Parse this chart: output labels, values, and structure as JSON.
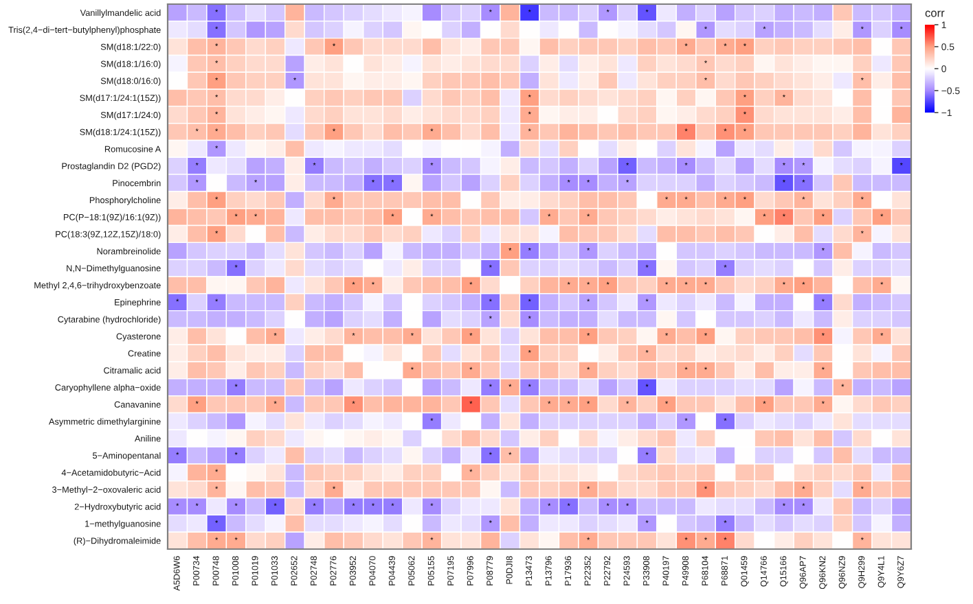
{
  "chart_data": {
    "type": "heatmap",
    "clabel": "corr",
    "clim": [
      -1,
      1
    ],
    "cticks": [
      {
        "value": -1,
        "label": "−1"
      },
      {
        "value": -0.5,
        "label": "−0.5"
      },
      0,
      0.5,
      1
    ],
    "categories": [
      "A5D6W6",
      "P00734",
      "P00748",
      "P01008",
      "P01019",
      "P01033",
      "P02652",
      "P02748",
      "P02776",
      "P03952",
      "P04070",
      "P04439",
      "P05062",
      "P05155",
      "P07195",
      "P07996",
      "P08779",
      "P0DJI8",
      "P13473",
      "P13796",
      "P17936",
      "P22352",
      "P22792",
      "P24593",
      "P33908",
      "P40197",
      "P49908",
      "P68104",
      "P68871",
      "Q01459",
      "Q14766",
      "Q15166",
      "Q96AP7",
      "Q96KN2",
      "Q96NZ9",
      "Q9H299",
      "Q9Y4L1",
      "Q9Y6Z7"
    ],
    "y_categories": [
      "Vanillylmandelic acid",
      "Tris(2,4−di−tert−butylphenyl)phosphate",
      "SM(d18:1/22:0)",
      "SM(d18:1/16:0)",
      "SM(d18:0/16:0)",
      "SM(d17:1/24:1(15Z))",
      "SM(d17:1/24:0)",
      "SM(d18:1/24:1(15Z))",
      "Romucosine A",
      "Prostaglandin D2 (PGD2)",
      "Pinocembrin",
      "Phosphorylcholine",
      "PC(P−18:1(9Z)/16:1(9Z))",
      "PC(18:3(9Z,12Z,15Z)/18:0)",
      "Norambreinolide",
      "N,N−Dimethylguanosine",
      "Methyl 2,4,6−trihydroxybenzoate",
      "Epinephrine",
      "Cytarabine (hydrochloride)",
      "Cyasterone",
      "Creatine",
      "Citramalic acid",
      "Caryophyllene alpha−oxide",
      "Canavanine",
      "Asymmetric dimethylarginine",
      "Aniline",
      "5−Aminopentanal",
      "4−Acetamidobutyric−Acid",
      "3−Methyl−2−oxovaleric acid",
      "2−Hydroxybutyric acid",
      "1−methylguanosine",
      "(R)−Dihydromaleimide"
    ],
    "cells": [
      [
        -0.4,
        -0.3,
        -0.6,
        -0.3,
        -0.15,
        -0.25,
        0.4,
        -0.3,
        -0.25,
        -0.2,
        -0.15,
        -0.1,
        -0.05,
        -0.5,
        -0.25,
        -0.2,
        -0.5,
        0.4,
        -0.8,
        -0.3,
        -0.3,
        -0.2,
        -0.45,
        -0.2,
        -0.7,
        -0.1,
        -0.35,
        -0.2,
        -0.4,
        -0.25,
        -0.2,
        -0.35,
        -0.3,
        -0.35,
        0.3,
        -0.3,
        -0.25,
        -0.35
      ],
      [
        -0.1,
        -0.15,
        -0.6,
        -0.25,
        -0.45,
        -0.4,
        0.2,
        -0.25,
        -0.2,
        -0.05,
        -0.2,
        -0.25,
        0.05,
        0,
        -0.2,
        -0.35,
        0,
        0.2,
        0,
        -0.1,
        0,
        -0.3,
        0,
        -0.05,
        -0.15,
        -0.25,
        0.05,
        -0.45,
        -0.15,
        -0.2,
        -0.4,
        -0.35,
        -0.3,
        -0.15,
        0.1,
        -0.45,
        -0.2,
        -0.5
      ],
      [
        0.15,
        0.35,
        0.4,
        0.3,
        0.2,
        0.25,
        -0.1,
        0.3,
        0.5,
        0.3,
        0.2,
        0.2,
        0.2,
        0.35,
        0.15,
        0.1,
        0.3,
        0.3,
        0.05,
        0.35,
        0.25,
        0.3,
        0.3,
        0.25,
        0.35,
        0.3,
        0.45,
        0.3,
        0.45,
        0.5,
        0.25,
        0.3,
        0.25,
        0.25,
        0.3,
        0.35,
        0,
        0.3
      ],
      [
        -0.05,
        0.3,
        0.35,
        0.25,
        0.2,
        0.2,
        -0.4,
        0.1,
        0.15,
        0,
        0.15,
        0.1,
        -0.05,
        0.15,
        0.1,
        0.15,
        0.2,
        0.2,
        -0.2,
        0.1,
        -0.15,
        0.1,
        0.15,
        -0.1,
        0.25,
        0.15,
        0.2,
        0.3,
        0.2,
        0.25,
        0.05,
        0.15,
        0.1,
        0.05,
        0.05,
        0.25,
        -0.1,
        0.3
      ],
      [
        0,
        0.3,
        0.5,
        0.3,
        0.25,
        0.25,
        -0.45,
        0.15,
        0.15,
        0.05,
        0.1,
        0.1,
        0.05,
        0.25,
        0.3,
        0.3,
        0.35,
        0.3,
        -0.35,
        0.15,
        -0.1,
        0.1,
        0.3,
        -0.1,
        0.15,
        0.25,
        0.25,
        0.35,
        0.2,
        0.3,
        0.25,
        0.2,
        0.15,
        0.1,
        -0.1,
        0.35,
        0.1,
        0.35
      ],
      [
        0.35,
        0.3,
        0.35,
        0.2,
        0.2,
        0.1,
        0,
        0.25,
        0.3,
        0.25,
        0.3,
        0.3,
        -0.2,
        0.2,
        0.3,
        0.25,
        0.35,
        -0.1,
        0.5,
        0.2,
        0.25,
        0.2,
        0.15,
        0.2,
        0.25,
        0.05,
        0.25,
        0.05,
        0.3,
        0.5,
        0.25,
        0.4,
        0.2,
        0.15,
        0,
        0.35,
        0,
        0.3
      ],
      [
        0.2,
        0.3,
        0.4,
        0.15,
        0.1,
        0.05,
        -0.1,
        0.2,
        0.25,
        0.15,
        0.15,
        0.2,
        0.1,
        0.15,
        0.2,
        0.2,
        0.25,
        -0.1,
        0.45,
        0.05,
        0.1,
        0.1,
        0,
        0.2,
        0.25,
        0.05,
        0.1,
        0.2,
        0.25,
        0.55,
        0.2,
        0.15,
        0.15,
        0.15,
        0.1,
        0.35,
        0,
        0.4
      ],
      [
        0.3,
        0.35,
        0.45,
        0.35,
        0.25,
        0.3,
        -0.15,
        0.3,
        0.5,
        0.3,
        0.2,
        0.35,
        0.3,
        0.45,
        0.35,
        0.2,
        0.35,
        -0.1,
        0.4,
        0.3,
        0.4,
        0.35,
        0.3,
        0.35,
        0.3,
        0.3,
        0.6,
        0.3,
        0.55,
        0.5,
        0.3,
        0.3,
        0.3,
        0.3,
        0.25,
        0.4,
        0.15,
        0.25
      ],
      [
        0.05,
        -0.1,
        -0.45,
        -0.1,
        0.05,
        0.1,
        0.35,
        -0.1,
        -0.05,
        -0.1,
        -0.1,
        -0.15,
        0,
        -0.05,
        0,
        0,
        -0.05,
        -0.35,
        0.2,
        -0.15,
        0.25,
        0,
        -0.15,
        0.1,
        0,
        -0.2,
        0.15,
        -0.05,
        -0.4,
        -0.1,
        -0.15,
        0.1,
        -0.1,
        0.2,
        -0.25,
        -0.05,
        -0.05,
        -0.2
      ],
      [
        -0.2,
        -0.55,
        -0.1,
        -0.15,
        -0.4,
        -0.35,
        0.1,
        -0.55,
        -0.3,
        -0.25,
        -0.35,
        -0.25,
        -0.2,
        -0.5,
        -0.3,
        -0.25,
        -0.05,
        0.1,
        -0.3,
        -0.25,
        -0.35,
        -0.2,
        -0.4,
        -0.65,
        -0.3,
        -0.35,
        -0.5,
        -0.3,
        -0.15,
        -0.4,
        -0.15,
        -0.5,
        -0.45,
        -0.05,
        -0.15,
        -0.2,
        -0.05,
        -0.75
      ],
      [
        -0.25,
        -0.45,
        0,
        -0.3,
        -0.4,
        -0.4,
        0.1,
        -0.3,
        -0.3,
        -0.35,
        -0.6,
        -0.6,
        0.05,
        -0.4,
        -0.25,
        -0.4,
        -0.2,
        0.25,
        -0.2,
        -0.35,
        -0.5,
        -0.5,
        -0.35,
        -0.4,
        -0.2,
        -0.2,
        -0.2,
        -0.35,
        -0.2,
        -0.25,
        -0.3,
        -0.7,
        -0.6,
        -0.25,
        0.3,
        -0.3,
        -0.3,
        -0.3
      ],
      [
        0.1,
        0.35,
        0.5,
        0.25,
        0.2,
        0.3,
        -0.35,
        0.2,
        0.45,
        0.3,
        0.3,
        0.3,
        0.3,
        0.35,
        0.35,
        0,
        0.3,
        0.1,
        0.1,
        0.2,
        0.25,
        0.35,
        0.35,
        0.3,
        0,
        0.45,
        0.45,
        0.35,
        0.45,
        0.5,
        0.2,
        0.3,
        0.4,
        0.15,
        0.25,
        0.45,
        0,
        0.15
      ],
      [
        0.4,
        0.35,
        0.3,
        0.5,
        0.45,
        0.4,
        -0.1,
        0.35,
        0.35,
        0.3,
        0.35,
        0.5,
        0,
        0.45,
        0.35,
        0.3,
        0.35,
        0.35,
        -0.25,
        0.45,
        0.3,
        0.45,
        0.3,
        0.25,
        0.2,
        0.1,
        0.15,
        0.2,
        0.15,
        0.05,
        0.5,
        0.6,
        0.3,
        0.5,
        -0.2,
        0.3,
        0.5,
        0.3
      ],
      [
        0.1,
        0.35,
        0.5,
        0.2,
        0,
        0.35,
        -0.3,
        0.1,
        0.2,
        0.2,
        0.3,
        0.2,
        0.25,
        -0.1,
        -0.2,
        0.25,
        -0.1,
        0.15,
        0.15,
        -0.05,
        0.35,
        0.3,
        0.3,
        0.2,
        -0.15,
        0.35,
        0.35,
        0.3,
        0.35,
        0.3,
        0,
        0.1,
        0.35,
        -0.15,
        0.2,
        0.4,
        -0.05,
        0.15
      ],
      [
        -0.4,
        -0.25,
        -0.2,
        -0.2,
        -0.3,
        -0.15,
        0.15,
        -0.25,
        -0.3,
        -0.2,
        -0.4,
        -0.05,
        -0.3,
        -0.35,
        -0.35,
        -0.25,
        -0.35,
        0.5,
        -0.55,
        -0.35,
        -0.25,
        -0.45,
        -0.2,
        -0.3,
        -0.35,
        0,
        -0.25,
        -0.25,
        -0.2,
        -0.25,
        -0.3,
        -0.3,
        -0.3,
        -0.45,
        0.35,
        -0.05,
        -0.3,
        -0.25
      ],
      [
        -0.2,
        -0.2,
        -0.3,
        -0.6,
        -0.2,
        -0.1,
        0.2,
        -0.15,
        -0.2,
        -0.15,
        0,
        -0.1,
        0.1,
        -0.2,
        -0.2,
        0,
        -0.6,
        0.3,
        -0.2,
        -0.2,
        -0.15,
        -0.2,
        -0.3,
        -0.2,
        -0.6,
        0.05,
        -0.25,
        -0.2,
        -0.55,
        -0.2,
        -0.15,
        -0.2,
        0,
        -0.25,
        0.1,
        -0.2,
        -0.2,
        -0.15
      ],
      [
        0.35,
        0.35,
        0.05,
        0.05,
        0.3,
        0.4,
        -0.1,
        0.15,
        0.3,
        0.5,
        0.45,
        0.1,
        0.3,
        0.35,
        0.35,
        0.5,
        0.2,
        0,
        0.25,
        0.4,
        0.45,
        0.45,
        0.5,
        0.3,
        0.25,
        0.45,
        0.45,
        0.45,
        0.3,
        0.2,
        0.25,
        0.45,
        0.5,
        0.4,
        0,
        0.35,
        0.45,
        0.05
      ],
      [
        -0.6,
        -0.2,
        -0.55,
        -0.3,
        -0.3,
        -0.3,
        0.25,
        -0.3,
        -0.35,
        -0.25,
        -0.05,
        -0.25,
        0,
        -0.2,
        -0.25,
        -0.35,
        -0.6,
        0.3,
        -0.65,
        -0.35,
        -0.25,
        -0.4,
        -0.25,
        -0.1,
        -0.45,
        -0.1,
        -0.2,
        -0.1,
        -0.3,
        -0.05,
        -0.35,
        -0.35,
        0,
        -0.55,
        0.2,
        -0.35,
        -0.3,
        -0.25
      ],
      [
        -0.3,
        -0.3,
        -0.35,
        -0.35,
        -0.3,
        -0.2,
        0,
        -0.35,
        -0.4,
        -0.2,
        -0.15,
        -0.35,
        0,
        -0.4,
        -0.15,
        -0.2,
        -0.4,
        0.2,
        -0.5,
        -0.3,
        -0.35,
        -0.35,
        -0.15,
        -0.3,
        -0.3,
        0.05,
        -0.25,
        0,
        -0.25,
        -0.25,
        -0.2,
        -0.3,
        -0.1,
        -0.3,
        0.1,
        -0.2,
        -0.2,
        -0.25
      ],
      [
        0.1,
        0.35,
        0.15,
        0,
        0.35,
        0.45,
        -0.1,
        0.1,
        0.2,
        0.4,
        0.35,
        0.35,
        0.45,
        0.15,
        0.3,
        0.5,
        0.15,
        -0.2,
        0.15,
        0.35,
        0.35,
        0.5,
        0.3,
        0.25,
        0.05,
        0.45,
        0.35,
        0.5,
        0.05,
        0.25,
        0.3,
        0.3,
        0.35,
        0.55,
        -0.05,
        0.3,
        0.45,
        0.15
      ],
      [
        0.1,
        0.25,
        0.35,
        0.15,
        0.1,
        0.1,
        -0.2,
        0.35,
        0.35,
        0,
        -0.05,
        0.15,
        0,
        0.3,
        -0.15,
        0.15,
        0.3,
        -0.15,
        0.5,
        0.25,
        0.25,
        0,
        0.1,
        0.3,
        0.4,
        0.2,
        0.25,
        0.1,
        0.15,
        0.2,
        0.1,
        0.25,
        -0.15,
        0.3,
        0,
        0.15,
        -0.05,
        0.3
      ],
      [
        0.1,
        0.35,
        0.3,
        0.1,
        0.3,
        0.25,
        -0.3,
        0.25,
        0.2,
        0.35,
        0,
        0,
        0.45,
        0.35,
        0.3,
        0.45,
        0.3,
        -0.2,
        0.3,
        0.35,
        0.2,
        0.45,
        0.25,
        0.2,
        0.35,
        0.3,
        0.45,
        0.45,
        0.3,
        0.1,
        0.35,
        0.1,
        0.1,
        0.45,
        0,
        0.3,
        0.35,
        0.35
      ],
      [
        -0.35,
        -0.35,
        -0.35,
        -0.55,
        -0.3,
        -0.3,
        0.3,
        -0.3,
        -0.4,
        -0.1,
        -0.2,
        -0.25,
        0,
        -0.4,
        -0.3,
        -0.1,
        -0.55,
        0.45,
        -0.55,
        -0.3,
        -0.3,
        -0.15,
        -0.4,
        -0.25,
        -0.7,
        -0.1,
        -0.2,
        -0.2,
        -0.2,
        -0.15,
        -0.15,
        -0.4,
        -0.05,
        -0.3,
        0.4,
        -0.35,
        -0.3,
        -0.4
      ],
      [
        0.2,
        0.5,
        0.3,
        0.3,
        0.3,
        0.45,
        -0.3,
        0.3,
        0.3,
        0.55,
        0.35,
        0.4,
        0.4,
        0.4,
        0.3,
        0.7,
        0.3,
        -0.15,
        0.3,
        0.45,
        0.45,
        0.5,
        0.2,
        0.4,
        0.25,
        0.5,
        0.3,
        0.3,
        0.15,
        0.35,
        0.5,
        0.3,
        0.3,
        0.45,
        0.05,
        0.2,
        0.3,
        0.25
      ],
      [
        -0.1,
        -0.2,
        -0.3,
        -0.45,
        -0.05,
        -0.15,
        0.15,
        -0.1,
        -0.2,
        -0.15,
        -0.05,
        -0.1,
        0,
        -0.55,
        -0.1,
        0,
        -0.35,
        0.15,
        -0.35,
        -0.2,
        -0.2,
        -0.2,
        -0.2,
        -0.2,
        -0.35,
        -0.2,
        -0.45,
        0,
        -0.6,
        -0.2,
        -0.1,
        -0.15,
        -0.2,
        -0.1,
        0.15,
        -0.15,
        -0.15,
        -0.15
      ],
      [
        -0.1,
        0,
        -0.05,
        0.05,
        0.25,
        0.2,
        -0.1,
        0.05,
        0,
        0.05,
        0.1,
        0.05,
        -0.2,
        0,
        0.2,
        0.35,
        0.2,
        -0.25,
        0.1,
        0.25,
        0,
        0.2,
        -0.05,
        0.1,
        0.2,
        0.3,
        -0.1,
        0.25,
        0,
        0,
        0.3,
        0.35,
        0.15,
        0.35,
        -0.25,
        0.2,
        0,
        0.15
      ],
      [
        -0.55,
        -0.3,
        -0.4,
        -0.55,
        -0.2,
        -0.1,
        0.35,
        -0.2,
        -0.15,
        -0.3,
        -0.2,
        -0.15,
        0.05,
        -0.2,
        -0.35,
        -0.1,
        -0.6,
        0.35,
        -0.4,
        -0.1,
        -0.15,
        -0.2,
        -0.2,
        0,
        -0.55,
        0.2,
        -0.15,
        -0.1,
        -0.35,
        0,
        -0.2,
        -0.2,
        0,
        -0.25,
        0.35,
        -0.15,
        -0.3,
        -0.3
      ],
      [
        -0.05,
        0.4,
        0.45,
        0,
        0.05,
        0.15,
        -0.3,
        0.3,
        0.25,
        0.25,
        0.15,
        0.1,
        0.25,
        0.25,
        0,
        0.4,
        0.25,
        0.15,
        0.3,
        0.15,
        0.15,
        0.1,
        0,
        0.2,
        0.25,
        0.3,
        0.25,
        0.3,
        0,
        0.3,
        0.3,
        0,
        0.2,
        0.25,
        0.2,
        0.3,
        -0.1,
        0.35
      ],
      [
        0.15,
        0.2,
        0.4,
        0.05,
        0.35,
        0.3,
        -0.3,
        0.2,
        0.45,
        0.1,
        0.3,
        0.3,
        0.3,
        0.3,
        0.3,
        0.3,
        0.05,
        -0.3,
        0.3,
        0.25,
        0.3,
        0.45,
        0.3,
        0.2,
        0.2,
        0.3,
        0.3,
        0.55,
        0.3,
        0.25,
        0.2,
        0.35,
        0.45,
        0.25,
        -0.15,
        0.45,
        0.3,
        0.35
      ],
      [
        -0.5,
        -0.5,
        -0.1,
        -0.5,
        -0.3,
        -0.65,
        0.2,
        -0.55,
        -0.4,
        -0.55,
        -0.55,
        -0.55,
        -0.1,
        -0.5,
        -0.2,
        -0.1,
        -0.1,
        0.15,
        -0.35,
        -0.5,
        -0.6,
        -0.3,
        -0.5,
        -0.5,
        -0.3,
        -0.3,
        -0.3,
        -0.1,
        -0.15,
        -0.15,
        -0.3,
        -0.5,
        -0.5,
        -0.1,
        0.3,
        -0.3,
        -0.2,
        -0.4
      ],
      [
        -0.15,
        -0.1,
        -0.65,
        -0.3,
        -0.15,
        -0.05,
        0.35,
        -0.15,
        -0.15,
        -0.1,
        -0.05,
        -0.15,
        0,
        -0.3,
        -0.1,
        -0.15,
        -0.45,
        0.35,
        -0.35,
        -0.1,
        -0.1,
        -0.2,
        -0.15,
        -0.1,
        -0.45,
        0,
        -0.25,
        -0.3,
        -0.55,
        -0.3,
        -0.15,
        -0.25,
        -0.15,
        -0.2,
        0.25,
        -0.25,
        -0.05,
        -0.35
      ],
      [
        0.15,
        0.35,
        0.45,
        0.45,
        0.2,
        0.25,
        -0.4,
        0.1,
        0.35,
        0.3,
        0.2,
        0.15,
        0.3,
        0.4,
        0.15,
        0.15,
        0.4,
        -0.2,
        0.15,
        0.05,
        0.35,
        0.45,
        0.3,
        0.3,
        0.3,
        0.15,
        0.55,
        0.45,
        0.6,
        0.2,
        0,
        0.1,
        0.25,
        0.15,
        0,
        0.4,
        0.15,
        0.15
      ]
    ],
    "cell_labels": [
      [
        null,
        null,
        "*",
        null,
        null,
        null,
        null,
        null,
        null,
        null,
        null,
        null,
        null,
        null,
        null,
        null,
        "*",
        null,
        "*",
        null,
        null,
        null,
        "*",
        null,
        "*",
        null,
        null,
        null,
        null,
        null,
        null,
        null,
        null,
        null,
        null,
        null,
        null,
        null
      ],
      [
        null,
        null,
        "*",
        null,
        null,
        null,
        null,
        null,
        null,
        null,
        null,
        null,
        null,
        null,
        null,
        null,
        null,
        null,
        null,
        null,
        null,
        null,
        null,
        null,
        null,
        null,
        null,
        "*",
        null,
        null,
        "*",
        null,
        null,
        null,
        null,
        "*",
        null,
        "*"
      ],
      [
        null,
        null,
        "*",
        null,
        null,
        null,
        null,
        null,
        "*",
        null,
        null,
        null,
        null,
        null,
        null,
        null,
        null,
        null,
        null,
        null,
        null,
        null,
        null,
        null,
        null,
        null,
        "*",
        null,
        "*",
        "*",
        null,
        null,
        null,
        null,
        null,
        null,
        null,
        null
      ],
      [
        null,
        null,
        "*",
        null,
        null,
        null,
        null,
        null,
        null,
        null,
        null,
        null,
        null,
        null,
        null,
        null,
        null,
        null,
        null,
        null,
        null,
        null,
        null,
        null,
        null,
        null,
        null,
        "*",
        null,
        null,
        null,
        null,
        null,
        null,
        null,
        null,
        null,
        null
      ],
      [
        null,
        null,
        "*",
        null,
        null,
        null,
        "*",
        null,
        null,
        null,
        null,
        null,
        null,
        null,
        null,
        null,
        null,
        null,
        null,
        null,
        null,
        null,
        null,
        null,
        null,
        null,
        null,
        "*",
        null,
        null,
        null,
        null,
        null,
        null,
        null,
        "*",
        null,
        null
      ],
      [
        null,
        null,
        "*",
        null,
        null,
        null,
        null,
        null,
        null,
        null,
        null,
        null,
        null,
        null,
        null,
        null,
        null,
        null,
        "*",
        null,
        null,
        null,
        null,
        null,
        null,
        null,
        null,
        null,
        null,
        "*",
        null,
        "*",
        null,
        null,
        null,
        null,
        null,
        null
      ],
      [
        null,
        null,
        "*",
        null,
        null,
        null,
        null,
        null,
        null,
        null,
        null,
        null,
        null,
        null,
        null,
        null,
        null,
        null,
        "*",
        null,
        null,
        null,
        null,
        null,
        null,
        null,
        null,
        null,
        null,
        "*",
        null,
        null,
        null,
        null,
        null,
        null,
        null,
        null
      ],
      [
        null,
        "*",
        "*",
        null,
        null,
        null,
        null,
        null,
        "*",
        null,
        null,
        null,
        null,
        "*",
        null,
        null,
        null,
        null,
        "*",
        null,
        null,
        null,
        null,
        null,
        null,
        null,
        "*",
        null,
        "*",
        "*",
        null,
        null,
        null,
        null,
        null,
        null,
        null,
        null
      ],
      [
        null,
        null,
        "*",
        null,
        null,
        null,
        null,
        null,
        null,
        null,
        null,
        null,
        null,
        null,
        null,
        null,
        null,
        null,
        null,
        null,
        null,
        null,
        null,
        null,
        null,
        null,
        null,
        null,
        null,
        null,
        null,
        null,
        null,
        null,
        null,
        null,
        null,
        null
      ],
      [
        null,
        "*",
        null,
        null,
        null,
        null,
        null,
        "*",
        null,
        null,
        null,
        null,
        null,
        "*",
        null,
        null,
        null,
        null,
        null,
        null,
        null,
        null,
        null,
        "*",
        null,
        null,
        "*",
        null,
        null,
        null,
        null,
        "*",
        "*",
        null,
        null,
        null,
        null,
        "*"
      ],
      [
        null,
        "*",
        null,
        null,
        "*",
        null,
        null,
        null,
        null,
        null,
        "*",
        "*",
        null,
        null,
        null,
        null,
        null,
        null,
        null,
        null,
        "*",
        "*",
        null,
        "*",
        null,
        null,
        null,
        null,
        null,
        null,
        null,
        "*",
        "*",
        null,
        null,
        null,
        null,
        null
      ],
      [
        null,
        null,
        "*",
        null,
        null,
        null,
        null,
        null,
        "*",
        null,
        null,
        null,
        null,
        null,
        null,
        null,
        null,
        null,
        null,
        null,
        null,
        null,
        null,
        null,
        null,
        "*",
        "*",
        null,
        "*",
        "*",
        null,
        null,
        "*",
        null,
        null,
        "*",
        null,
        null
      ],
      [
        null,
        null,
        null,
        "*",
        "*",
        null,
        null,
        null,
        null,
        null,
        null,
        "*",
        null,
        "*",
        null,
        null,
        null,
        null,
        null,
        "*",
        null,
        "*",
        null,
        null,
        null,
        null,
        null,
        null,
        null,
        null,
        "*",
        "*",
        null,
        "*",
        null,
        null,
        "*",
        null
      ],
      [
        null,
        null,
        "*",
        null,
        null,
        null,
        null,
        null,
        null,
        null,
        null,
        null,
        null,
        null,
        null,
        null,
        null,
        null,
        null,
        null,
        null,
        null,
        null,
        null,
        null,
        null,
        null,
        null,
        null,
        null,
        null,
        null,
        null,
        null,
        null,
        "*",
        null,
        null
      ],
      [
        null,
        null,
        null,
        null,
        null,
        null,
        null,
        null,
        null,
        null,
        null,
        null,
        null,
        null,
        null,
        null,
        null,
        "*",
        "*",
        null,
        null,
        "*",
        null,
        null,
        null,
        null,
        null,
        null,
        null,
        null,
        null,
        null,
        null,
        "*",
        null,
        null,
        null,
        null
      ],
      [
        null,
        null,
        null,
        "*",
        null,
        null,
        null,
        null,
        null,
        null,
        null,
        null,
        null,
        null,
        null,
        null,
        "*",
        null,
        null,
        null,
        null,
        null,
        null,
        null,
        "*",
        null,
        null,
        null,
        "*",
        null,
        null,
        null,
        null,
        null,
        null,
        null,
        null,
        null
      ],
      [
        null,
        null,
        null,
        null,
        null,
        null,
        null,
        null,
        null,
        "*",
        "*",
        null,
        null,
        null,
        null,
        "*",
        null,
        null,
        null,
        null,
        "*",
        "*",
        "*",
        null,
        null,
        "*",
        "*",
        "*",
        null,
        null,
        null,
        "*",
        "*",
        null,
        null,
        null,
        "*",
        null
      ],
      [
        "*",
        null,
        "*",
        null,
        null,
        null,
        null,
        null,
        null,
        null,
        null,
        null,
        null,
        null,
        null,
        null,
        "*",
        null,
        "*",
        null,
        null,
        "*",
        null,
        null,
        "*",
        null,
        null,
        null,
        null,
        null,
        null,
        null,
        null,
        "*",
        null,
        null,
        null,
        null
      ],
      [
        null,
        null,
        null,
        null,
        null,
        null,
        null,
        null,
        null,
        null,
        null,
        null,
        null,
        null,
        null,
        null,
        "*",
        null,
        "*",
        null,
        null,
        null,
        null,
        null,
        null,
        null,
        null,
        null,
        null,
        null,
        null,
        null,
        null,
        null,
        null,
        null,
        null,
        null
      ],
      [
        null,
        null,
        null,
        null,
        null,
        "*",
        null,
        null,
        null,
        "*",
        null,
        null,
        "*",
        null,
        null,
        "*",
        null,
        null,
        null,
        null,
        null,
        "*",
        null,
        null,
        null,
        "*",
        null,
        "*",
        null,
        null,
        null,
        null,
        null,
        "*",
        null,
        null,
        "*",
        null
      ],
      [
        null,
        null,
        null,
        null,
        null,
        null,
        null,
        null,
        null,
        null,
        null,
        null,
        null,
        null,
        null,
        null,
        null,
        null,
        "*",
        null,
        null,
        null,
        null,
        null,
        "*",
        null,
        null,
        null,
        null,
        null,
        null,
        null,
        null,
        null,
        null,
        null,
        null,
        null
      ],
      [
        null,
        null,
        null,
        null,
        null,
        null,
        null,
        null,
        null,
        null,
        null,
        null,
        "*",
        null,
        null,
        "*",
        null,
        null,
        null,
        null,
        null,
        "*",
        null,
        null,
        null,
        null,
        "*",
        "*",
        null,
        null,
        null,
        null,
        null,
        "*",
        null,
        null,
        null,
        null
      ],
      [
        null,
        null,
        null,
        "*",
        null,
        null,
        null,
        null,
        null,
        null,
        null,
        null,
        null,
        null,
        null,
        null,
        "*",
        "*",
        "*",
        null,
        null,
        null,
        null,
        null,
        "*",
        null,
        null,
        null,
        null,
        null,
        null,
        null,
        null,
        null,
        "*",
        null,
        null,
        null
      ],
      [
        null,
        "*",
        null,
        null,
        null,
        "*",
        null,
        null,
        null,
        "*",
        null,
        null,
        null,
        null,
        null,
        "*",
        null,
        null,
        null,
        "*",
        "*",
        "*",
        null,
        "*",
        null,
        "*",
        null,
        null,
        null,
        null,
        "*",
        null,
        null,
        "*",
        null,
        null,
        null,
        null
      ],
      [
        null,
        null,
        null,
        null,
        null,
        null,
        null,
        null,
        null,
        null,
        null,
        null,
        null,
        "*",
        null,
        null,
        null,
        null,
        null,
        null,
        null,
        null,
        null,
        null,
        null,
        null,
        "*",
        null,
        "*",
        null,
        null,
        null,
        null,
        null,
        null,
        null,
        null,
        null
      ],
      [
        null,
        null,
        null,
        null,
        null,
        null,
        null,
        null,
        null,
        null,
        null,
        null,
        null,
        null,
        null,
        null,
        null,
        null,
        null,
        null,
        null,
        null,
        null,
        null,
        null,
        null,
        null,
        null,
        null,
        null,
        null,
        null,
        null,
        null,
        null,
        null,
        null,
        null
      ],
      [
        "*",
        null,
        null,
        "*",
        null,
        null,
        null,
        null,
        null,
        null,
        null,
        null,
        null,
        null,
        null,
        null,
        "*",
        "*",
        null,
        null,
        null,
        null,
        null,
        null,
        "*",
        null,
        null,
        null,
        null,
        null,
        null,
        null,
        null,
        null,
        null,
        null,
        null,
        null
      ],
      [
        null,
        null,
        "*",
        null,
        null,
        null,
        null,
        null,
        null,
        null,
        null,
        null,
        null,
        null,
        null,
        "*",
        null,
        null,
        null,
        null,
        null,
        null,
        null,
        null,
        null,
        null,
        null,
        null,
        null,
        null,
        null,
        null,
        null,
        null,
        null,
        null,
        null,
        null
      ],
      [
        null,
        null,
        "*",
        null,
        null,
        null,
        null,
        null,
        "*",
        null,
        null,
        null,
        null,
        null,
        null,
        null,
        null,
        null,
        null,
        null,
        null,
        "*",
        null,
        null,
        null,
        null,
        null,
        "*",
        null,
        null,
        null,
        null,
        "*",
        null,
        null,
        "*",
        null,
        null
      ],
      [
        "*",
        "*",
        null,
        "*",
        null,
        "*",
        null,
        "*",
        null,
        "*",
        "*",
        "*",
        null,
        "*",
        null,
        null,
        null,
        null,
        null,
        "*",
        "*",
        null,
        "*",
        "*",
        null,
        null,
        null,
        null,
        null,
        null,
        null,
        "*",
        "*",
        null,
        null,
        null,
        null,
        null
      ],
      [
        null,
        null,
        "*",
        null,
        null,
        null,
        null,
        null,
        null,
        null,
        null,
        null,
        null,
        null,
        null,
        null,
        "*",
        null,
        null,
        null,
        null,
        null,
        null,
        null,
        "*",
        null,
        null,
        null,
        "*",
        null,
        null,
        null,
        null,
        null,
        null,
        null,
        null,
        null
      ],
      [
        null,
        null,
        "*",
        "*",
        null,
        null,
        null,
        null,
        null,
        null,
        null,
        null,
        null,
        "*",
        null,
        null,
        null,
        null,
        null,
        null,
        null,
        "*",
        null,
        null,
        null,
        null,
        "*",
        "*",
        "*",
        null,
        null,
        null,
        null,
        null,
        null,
        "*",
        null,
        null
      ]
    ]
  }
}
